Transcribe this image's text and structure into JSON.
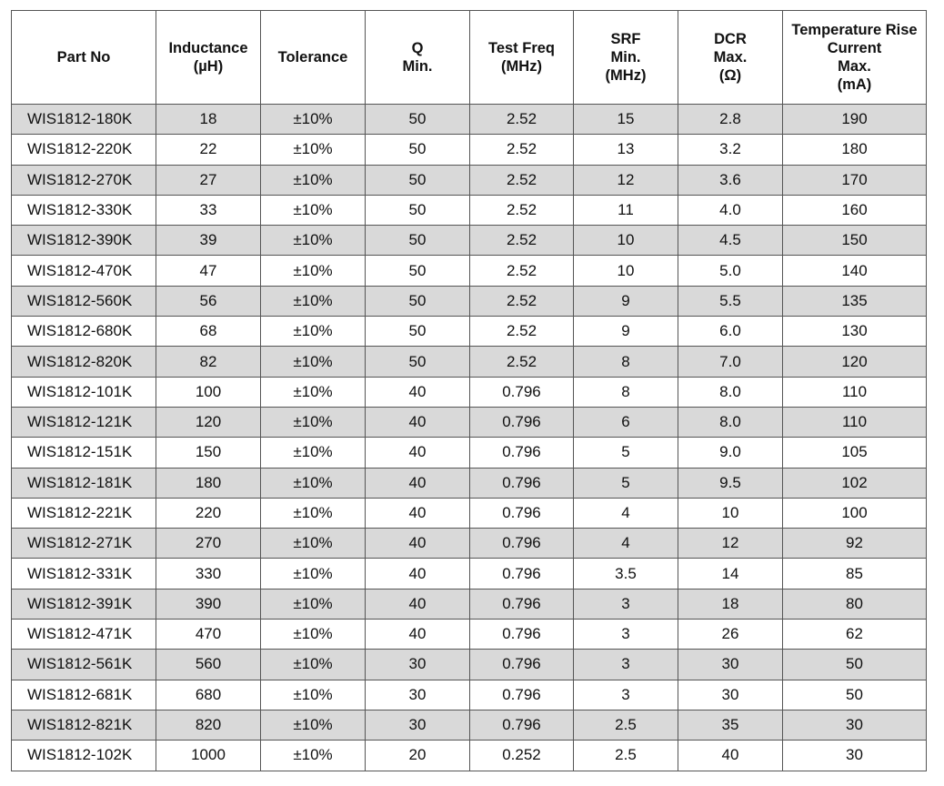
{
  "columns": [
    {
      "key": "part_no",
      "lines": [
        "Part No"
      ]
    },
    {
      "key": "inductance",
      "lines": [
        "Inductance",
        "(µH)"
      ]
    },
    {
      "key": "tolerance",
      "lines": [
        "Tolerance"
      ]
    },
    {
      "key": "q_min",
      "lines": [
        "Q",
        "Min."
      ]
    },
    {
      "key": "test_freq",
      "lines": [
        "Test Freq",
        "(MHz)"
      ]
    },
    {
      "key": "srf_min",
      "lines": [
        "SRF",
        "Min.",
        "(MHz)"
      ]
    },
    {
      "key": "dcr_max",
      "lines": [
        "DCR",
        "Max.",
        "(Ω)"
      ]
    },
    {
      "key": "temp_rise",
      "lines": [
        "Temperature Rise",
        "Current",
        "Max.",
        "(mA)"
      ]
    }
  ],
  "rows": [
    [
      "WIS1812-180K",
      "18",
      "±10%",
      "50",
      "2.52",
      "15",
      "2.8",
      "190"
    ],
    [
      "WIS1812-220K",
      "22",
      "±10%",
      "50",
      "2.52",
      "13",
      "3.2",
      "180"
    ],
    [
      "WIS1812-270K",
      "27",
      "±10%",
      "50",
      "2.52",
      "12",
      "3.6",
      "170"
    ],
    [
      "WIS1812-330K",
      "33",
      "±10%",
      "50",
      "2.52",
      "11",
      "4.0",
      "160"
    ],
    [
      "WIS1812-390K",
      "39",
      "±10%",
      "50",
      "2.52",
      "10",
      "4.5",
      "150"
    ],
    [
      "WIS1812-470K",
      "47",
      "±10%",
      "50",
      "2.52",
      "10",
      "5.0",
      "140"
    ],
    [
      "WIS1812-560K",
      "56",
      "±10%",
      "50",
      "2.52",
      "9",
      "5.5",
      "135"
    ],
    [
      "WIS1812-680K",
      "68",
      "±10%",
      "50",
      "2.52",
      "9",
      "6.0",
      "130"
    ],
    [
      "WIS1812-820K",
      "82",
      "±10%",
      "50",
      "2.52",
      "8",
      "7.0",
      "120"
    ],
    [
      "WIS1812-101K",
      "100",
      "±10%",
      "40",
      "0.796",
      "8",
      "8.0",
      "110"
    ],
    [
      "WIS1812-121K",
      "120",
      "±10%",
      "40",
      "0.796",
      "6",
      "8.0",
      "110"
    ],
    [
      "WIS1812-151K",
      "150",
      "±10%",
      "40",
      "0.796",
      "5",
      "9.0",
      "105"
    ],
    [
      "WIS1812-181K",
      "180",
      "±10%",
      "40",
      "0.796",
      "5",
      "9.5",
      "102"
    ],
    [
      "WIS1812-221K",
      "220",
      "±10%",
      "40",
      "0.796",
      "4",
      "10",
      "100"
    ],
    [
      "WIS1812-271K",
      "270",
      "±10%",
      "40",
      "0.796",
      "4",
      "12",
      "92"
    ],
    [
      "WIS1812-331K",
      "330",
      "±10%",
      "40",
      "0.796",
      "3.5",
      "14",
      "85"
    ],
    [
      "WIS1812-391K",
      "390",
      "±10%",
      "40",
      "0.796",
      "3",
      "18",
      "80"
    ],
    [
      "WIS1812-471K",
      "470",
      "±10%",
      "40",
      "0.796",
      "3",
      "26",
      "62"
    ],
    [
      "WIS1812-561K",
      "560",
      "±10%",
      "30",
      "0.796",
      "3",
      "30",
      "50"
    ],
    [
      "WIS1812-681K",
      "680",
      "±10%",
      "30",
      "0.796",
      "3",
      "30",
      "50"
    ],
    [
      "WIS1812-821K",
      "820",
      "±10%",
      "30",
      "0.796",
      "2.5",
      "35",
      "30"
    ],
    [
      "WIS1812-102K",
      "1000",
      "±10%",
      "20",
      "0.252",
      "2.5",
      "40",
      "30"
    ]
  ],
  "colors": {
    "stripe": "#d9d9d9",
    "border": "#555555",
    "text": "#111111"
  }
}
